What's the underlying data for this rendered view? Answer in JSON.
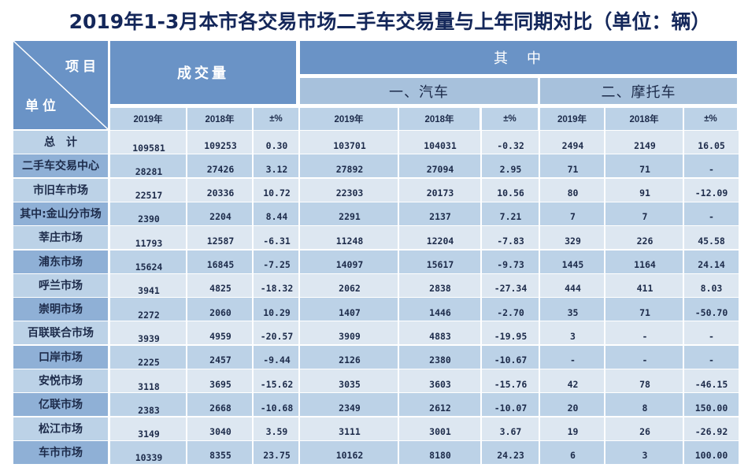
{
  "title": "2019年1-3月本市各交易市场二手车交易量与上年同期对比（单位：辆）",
  "header": {
    "corner_top": "项目",
    "corner_bottom": "单位",
    "volume": "成交量",
    "of_which": "其　中",
    "cars": "一、汽车",
    "motorcycles": "二、摩托车",
    "sub": [
      "2019年",
      "2018年",
      "±%",
      "2019年",
      "2018年",
      "±%",
      "2019年",
      "2018年",
      "±%"
    ]
  },
  "rows": [
    {
      "name": "总　计",
      "v": [
        "109581",
        "109253",
        "0.30",
        "103701",
        "104031",
        "-0.32",
        "2494",
        "2149",
        "16.05"
      ]
    },
    {
      "name": "二手车交易中心",
      "v": [
        "28281",
        "27426",
        "3.12",
        "27892",
        "27094",
        "2.95",
        "71",
        "71",
        "-"
      ]
    },
    {
      "name": "市旧车市场",
      "v": [
        "22517",
        "20336",
        "10.72",
        "22303",
        "20173",
        "10.56",
        "80",
        "91",
        "-12.09"
      ]
    },
    {
      "name": "其中:金山分市场",
      "v": [
        "2390",
        "2204",
        "8.44",
        "2291",
        "2137",
        "7.21",
        "7",
        "7",
        "-"
      ]
    },
    {
      "name": "莘庄市场",
      "v": [
        "11793",
        "12587",
        "-6.31",
        "11248",
        "12204",
        "-7.83",
        "329",
        "226",
        "45.58"
      ]
    },
    {
      "name": "浦东市场",
      "v": [
        "15624",
        "16845",
        "-7.25",
        "14097",
        "15617",
        "-9.73",
        "1445",
        "1164",
        "24.14"
      ]
    },
    {
      "name": "呼兰市场",
      "v": [
        "3941",
        "4825",
        "-18.32",
        "2062",
        "2838",
        "-27.34",
        "444",
        "411",
        "8.03"
      ]
    },
    {
      "name": "崇明市场",
      "v": [
        "2272",
        "2060",
        "10.29",
        "1407",
        "1446",
        "-2.70",
        "35",
        "71",
        "-50.70"
      ]
    },
    {
      "name": "百联联合市场",
      "v": [
        "3939",
        "4959",
        "-20.57",
        "3909",
        "4883",
        "-19.95",
        "3",
        "-",
        "-"
      ]
    },
    {
      "name": "口岸市场",
      "v": [
        "2225",
        "2457",
        "-9.44",
        "2126",
        "2380",
        "-10.67",
        "-",
        "-",
        "-"
      ]
    },
    {
      "name": "安悦市场",
      "v": [
        "3118",
        "3695",
        "-15.62",
        "3035",
        "3603",
        "-15.76",
        "42",
        "78",
        "-46.15"
      ]
    },
    {
      "name": "亿联市场",
      "v": [
        "2383",
        "2668",
        "-10.68",
        "2349",
        "2612",
        "-10.07",
        "20",
        "8",
        "150.00"
      ]
    },
    {
      "name": "松江市场",
      "v": [
        "3149",
        "3040",
        "3.59",
        "3111",
        "3001",
        "3.67",
        "19",
        "26",
        "-26.92"
      ]
    },
    {
      "name": "车市市场",
      "v": [
        "10339",
        "8355",
        "23.75",
        "10162",
        "8180",
        "24.23",
        "6",
        "3",
        "100.00"
      ]
    }
  ],
  "colors": {
    "title": "#14275a",
    "header_dark": "#6a93c6",
    "header_mid": "#a7c1dc",
    "row_light": "#dde7f1",
    "row_dark": "#bcd2e7",
    "label_dark": "#8fb0d6"
  }
}
